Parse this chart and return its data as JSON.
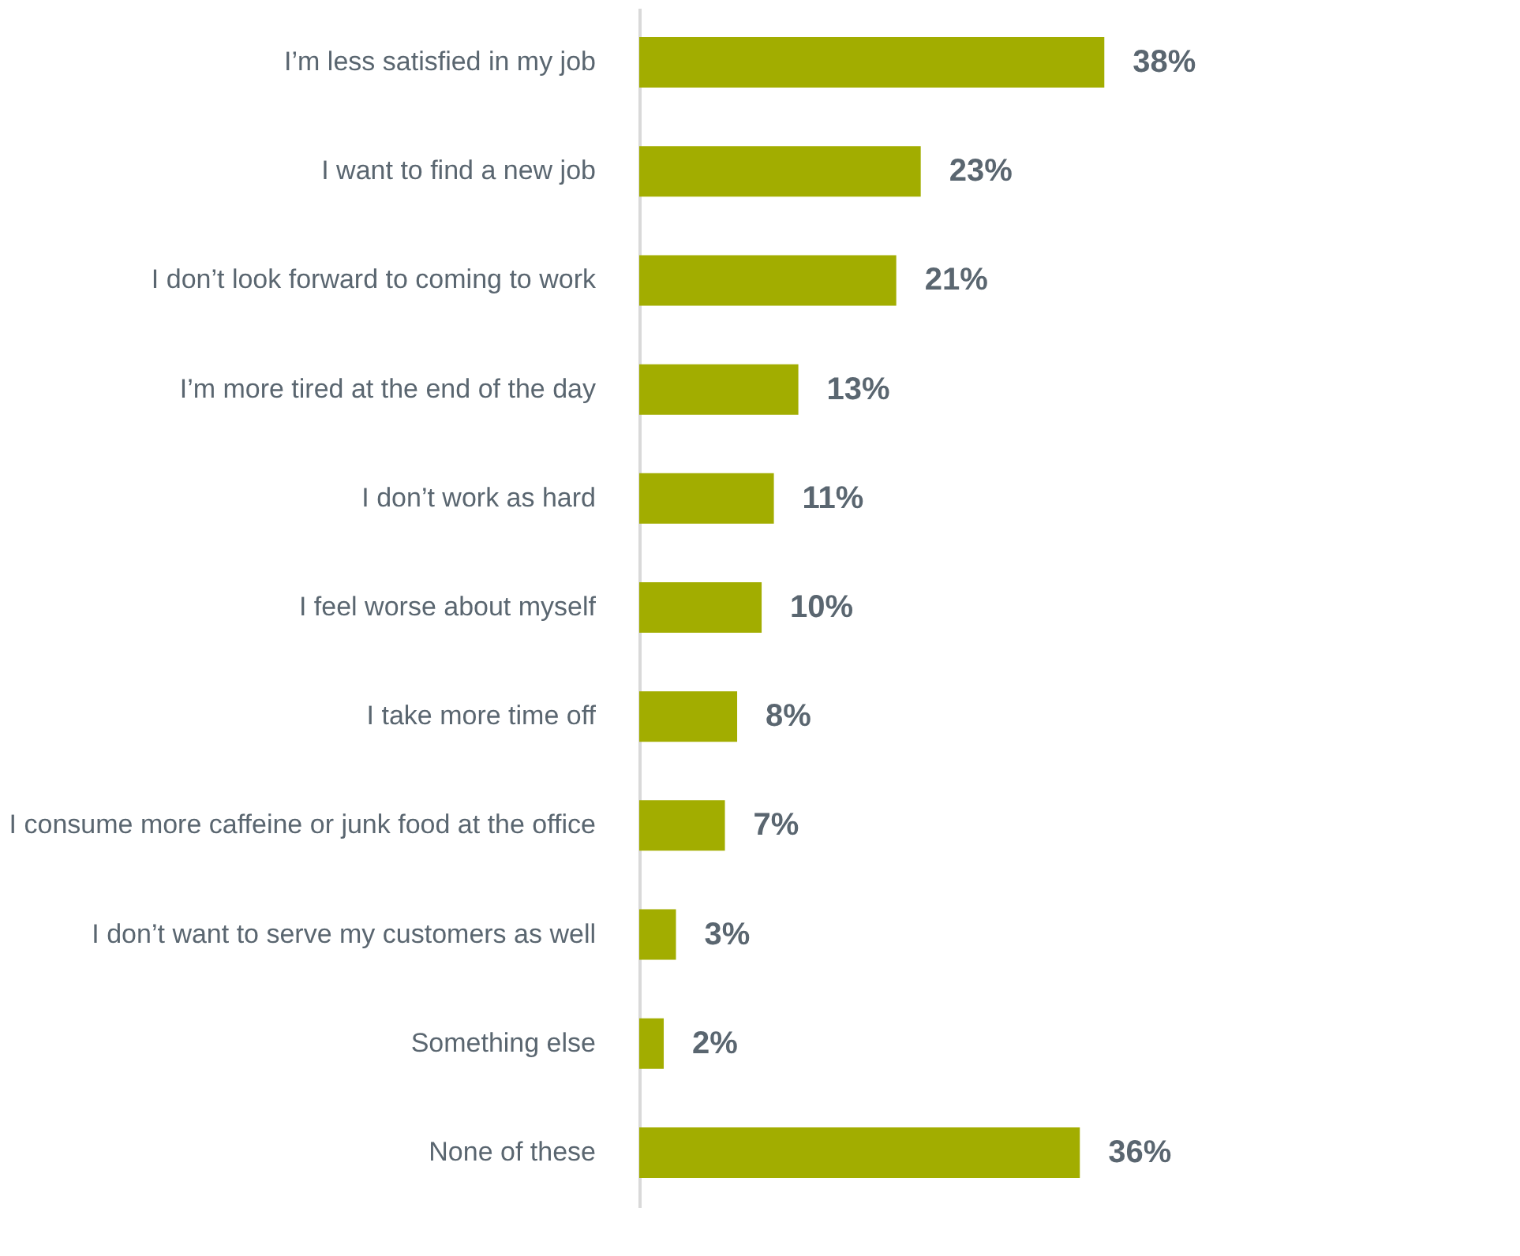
{
  "chart_data": {
    "type": "bar",
    "orientation": "horizontal",
    "categories": [
      "I’m less satisfied in my job",
      "I want to find a new job",
      "I don’t look forward to coming to work",
      "I’m more tired at the end of the day",
      "I don’t work as hard",
      "I feel worse about myself",
      "I take more time off",
      "I consume more caffeine or junk food at the office",
      "I don’t want to serve my customers as well",
      "Something else",
      "None of these"
    ],
    "values": [
      38,
      23,
      21,
      13,
      11,
      10,
      8,
      7,
      3,
      2,
      36
    ],
    "value_labels": [
      "38%",
      "23%",
      "21%",
      "13%",
      "11%",
      "10%",
      "8%",
      "7%",
      "3%",
      "2%",
      "36%"
    ],
    "color": "#a2ad00",
    "grid": false,
    "tick_labels": "y"
  }
}
